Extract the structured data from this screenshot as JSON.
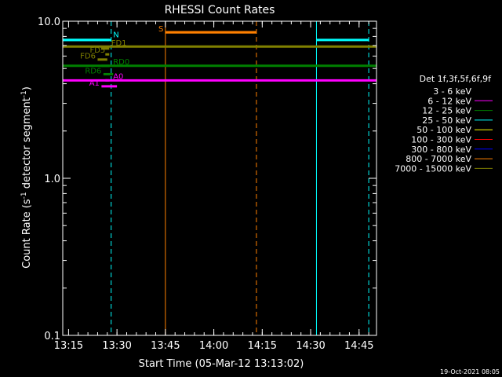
{
  "chart_data": {
    "type": "line",
    "title": "RHESSI Count Rates",
    "xlabel": "Start Time (05-Mar-12 13:13:02)",
    "ylabel_main": "Count Rate (s",
    "ylabel_sup1": "-1",
    "ylabel_mid": " detector segment",
    "ylabel_sup2": "-1",
    "ylabel_end": ")",
    "y_scale": "log",
    "ylim": [
      0.1,
      10.0
    ],
    "xlim_minutes": [
      13.22,
      14.84
    ],
    "x_ticks": [
      {
        "value": 13.25,
        "label": "13:15"
      },
      {
        "value": 13.5,
        "label": "13:30"
      },
      {
        "value": 13.75,
        "label": "13:45"
      },
      {
        "value": 14.0,
        "label": "14:00"
      },
      {
        "value": 14.25,
        "label": "14:15"
      },
      {
        "value": 14.5,
        "label": "14:30"
      },
      {
        "value": 14.75,
        "label": "14:45"
      }
    ],
    "y_tick_labels": [
      {
        "value": 10.0,
        "label": "10.0"
      },
      {
        "value": 1.0,
        "label": "1.0"
      },
      {
        "value": 0.1,
        "label": "0.1"
      }
    ],
    "legend_title": "Det 1f,3f,5f,6f,9f",
    "legend_placement": "right",
    "series": [
      {
        "name": "3 - 6 keV",
        "color": "#000000",
        "segments": []
      },
      {
        "name": "6 - 12 keV",
        "color": "#ff00ff",
        "segments": [
          [
            13.22,
            14.84,
            4.2
          ]
        ]
      },
      {
        "name": "12 - 25 keV",
        "color": "#008000",
        "segments": [
          [
            13.22,
            14.84,
            5.2
          ]
        ]
      },
      {
        "name": "25 - 50 keV",
        "color": "#00ffff",
        "segments": [
          [
            13.22,
            13.47,
            7.6
          ],
          [
            14.53,
            14.8,
            7.6
          ]
        ]
      },
      {
        "name": "50 - 100 keV",
        "color": "#ffff00",
        "segments": []
      },
      {
        "name": "100 - 300 keV",
        "color": "#ff0000",
        "segments": []
      },
      {
        "name": "300 - 800 keV",
        "color": "#0000ff",
        "segments": []
      },
      {
        "name": "800 - 7000 keV",
        "color": "#ff8000",
        "segments": [
          [
            13.75,
            14.22,
            8.5
          ]
        ]
      },
      {
        "name": "7000 - 15000 keV",
        "color": "#808000",
        "segments": [
          [
            13.22,
            14.84,
            6.9
          ]
        ]
      }
    ],
    "vertical_markers": [
      {
        "x": 13.22,
        "color": "#00ffff",
        "style": "solid"
      },
      {
        "x": 13.47,
        "color": "#00ffff",
        "style": "dashed"
      },
      {
        "x": 13.75,
        "color": "#ff8000",
        "style": "solid"
      },
      {
        "x": 14.22,
        "color": "#ff8000",
        "style": "dashed"
      },
      {
        "x": 14.53,
        "color": "#00ffff",
        "style": "solid"
      },
      {
        "x": 14.8,
        "color": "#00ffff",
        "style": "dashed"
      }
    ],
    "annotations": [
      {
        "text": "S",
        "color": "#ff8000",
        "x": 13.74,
        "y": 8.6,
        "lx0": 13.75,
        "lx1": 14.22,
        "ly": 8.5,
        "anchor": "end"
      },
      {
        "text": "N",
        "color": "#00ffff",
        "x": 13.48,
        "y": 7.9,
        "lx0": 13.22,
        "lx1": 13.46,
        "ly": 7.6,
        "anchor": "start"
      },
      {
        "text": "FD1",
        "color": "#808000",
        "x": 13.47,
        "y": 7.0,
        "lx0": 13.42,
        "lx1": 13.46,
        "ly": 6.7,
        "anchor": "start"
      },
      {
        "text": "FD5",
        "color": "#808000",
        "x": 13.44,
        "y": 6.3,
        "lx0": 13.44,
        "lx1": 13.46,
        "ly": 6.15,
        "anchor": "end"
      },
      {
        "text": "FD6",
        "color": "#808000",
        "x": 13.39,
        "y": 5.8,
        "lx0": 13.4,
        "lx1": 13.45,
        "ly": 5.7,
        "anchor": "end"
      },
      {
        "text": "RD0",
        "color": "#008000",
        "x": 13.48,
        "y": 5.3,
        "lx0": 13.42,
        "lx1": 13.46,
        "ly": 5.2,
        "anchor": "start"
      },
      {
        "text": "RD6",
        "color": "#008000",
        "x": 13.42,
        "y": 4.65,
        "lx0": 13.43,
        "lx1": 13.48,
        "ly": 4.6,
        "anchor": "end"
      },
      {
        "text": "A0",
        "color": "#ff00ff",
        "x": 13.48,
        "y": 4.3,
        "lx0": 13.44,
        "lx1": 13.46,
        "ly": 4.2,
        "anchor": "start"
      },
      {
        "text": "A1",
        "color": "#ff00ff",
        "x": 13.41,
        "y": 3.9,
        "lx0": 13.42,
        "lx1": 13.5,
        "ly": 3.85,
        "anchor": "end"
      }
    ],
    "footer": "19-Oct-2021 08:05"
  }
}
